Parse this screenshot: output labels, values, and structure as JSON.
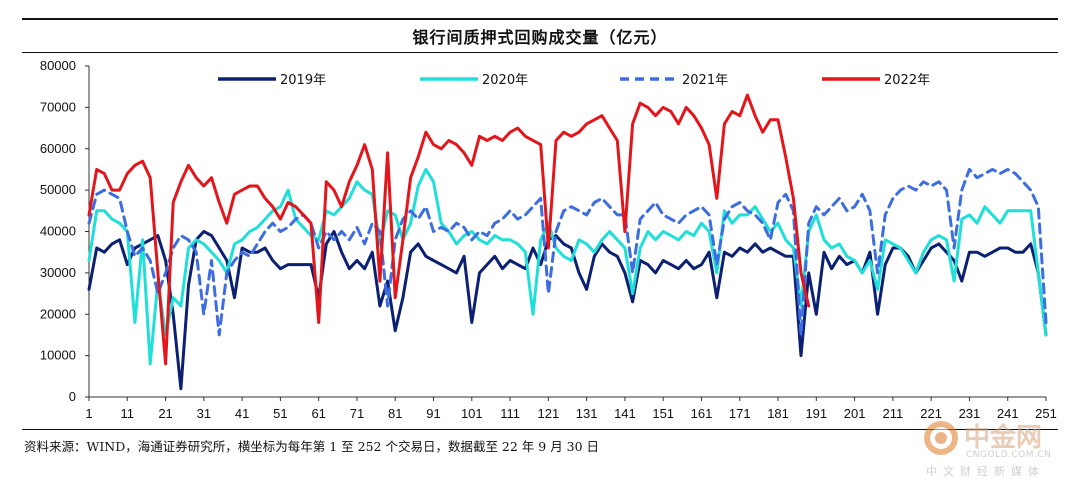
{
  "chart_data": {
    "type": "line",
    "title": "银行间质押式回购成交量（亿元）",
    "xlabel": "",
    "ylabel": "",
    "ylim": [
      0,
      80000
    ],
    "xlim": [
      1,
      251
    ],
    "yticks": [
      0,
      10000,
      20000,
      30000,
      40000,
      50000,
      60000,
      70000,
      80000
    ],
    "xticks": [
      1,
      11,
      21,
      31,
      41,
      51,
      61,
      71,
      81,
      91,
      101,
      111,
      121,
      131,
      141,
      151,
      161,
      171,
      181,
      191,
      201,
      211,
      221,
      231,
      241,
      251
    ],
    "legend_position": "top",
    "series": [
      {
        "name": "2019年",
        "color": "#0b1f73",
        "dash": "solid",
        "x": [
          1,
          3,
          5,
          7,
          9,
          11,
          13,
          15,
          17,
          19,
          21,
          23,
          25,
          27,
          29,
          31,
          33,
          35,
          37,
          39,
          41,
          43,
          45,
          47,
          49,
          51,
          53,
          55,
          57,
          59,
          61,
          63,
          65,
          67,
          69,
          71,
          73,
          75,
          77,
          79,
          81,
          83,
          85,
          87,
          89,
          91,
          93,
          95,
          97,
          99,
          101,
          103,
          105,
          107,
          109,
          111,
          113,
          115,
          117,
          119,
          121,
          123,
          125,
          127,
          129,
          131,
          133,
          135,
          137,
          139,
          141,
          143,
          145,
          147,
          149,
          151,
          153,
          155,
          157,
          159,
          161,
          163,
          165,
          167,
          169,
          171,
          173,
          175,
          177,
          179,
          181,
          183,
          185,
          187,
          189,
          191,
          193,
          195,
          197,
          199,
          201,
          203,
          205,
          207,
          209,
          211,
          213,
          215,
          217,
          219,
          221,
          223,
          225,
          227,
          229,
          231,
          233,
          235,
          237,
          239,
          241,
          243,
          245,
          247,
          249,
          251
        ],
        "values": [
          26000,
          36000,
          35000,
          37000,
          38000,
          32000,
          36000,
          37000,
          38000,
          39000,
          33000,
          20000,
          2000,
          27000,
          38000,
          40000,
          39000,
          36000,
          33000,
          24000,
          36000,
          35000,
          35000,
          36000,
          33000,
          31000,
          32000,
          32000,
          32000,
          32000,
          24000,
          37000,
          40000,
          35000,
          31000,
          33000,
          31000,
          35000,
          22000,
          28000,
          16000,
          24000,
          35000,
          37000,
          34000,
          33000,
          32000,
          31000,
          30000,
          34000,
          18000,
          30000,
          32000,
          34000,
          31000,
          33000,
          32000,
          31000,
          36000,
          32000,
          38000,
          39000,
          37000,
          36000,
          30000,
          26000,
          34000,
          37000,
          35000,
          34000,
          30000,
          23000,
          33000,
          32000,
          30000,
          33000,
          32000,
          31000,
          33000,
          31000,
          32000,
          35000,
          24000,
          35000,
          34000,
          36000,
          35000,
          37000,
          35000,
          36000,
          35000,
          34000,
          34000,
          10000,
          30000,
          20000,
          35000,
          31000,
          34000,
          32000,
          33000,
          30000,
          35000,
          20000,
          32000,
          36000,
          36000,
          34000,
          30000,
          33000,
          36000,
          37000,
          35000,
          33000,
          28000,
          35000,
          35000,
          34000,
          35000,
          36000,
          36000,
          35000,
          35000,
          37000,
          30000,
          15000
        ]
      },
      {
        "name": "2020年",
        "color": "#1fe0d8",
        "dash": "solid",
        "x": [
          1,
          3,
          5,
          7,
          9,
          11,
          13,
          15,
          17,
          19,
          21,
          23,
          25,
          27,
          29,
          31,
          33,
          35,
          37,
          39,
          41,
          43,
          45,
          47,
          49,
          51,
          53,
          55,
          57,
          59,
          61,
          63,
          65,
          67,
          69,
          71,
          73,
          75,
          77,
          79,
          81,
          83,
          85,
          87,
          89,
          91,
          93,
          95,
          97,
          99,
          101,
          103,
          105,
          107,
          109,
          111,
          113,
          115,
          117,
          119,
          121,
          123,
          125,
          127,
          129,
          131,
          133,
          135,
          137,
          139,
          141,
          143,
          145,
          147,
          149,
          151,
          153,
          155,
          157,
          159,
          161,
          163,
          165,
          167,
          169,
          171,
          173,
          175,
          177,
          179,
          181,
          183,
          185,
          187,
          189,
          191,
          193,
          195,
          197,
          199,
          201,
          203,
          205,
          207,
          209,
          211,
          213,
          215,
          217,
          219,
          221,
          223,
          225,
          227,
          229,
          231,
          233,
          235,
          237,
          239,
          241,
          243,
          245,
          247,
          249,
          251
        ],
        "values": [
          33000,
          45000,
          45000,
          43000,
          42000,
          40000,
          18000,
          38000,
          8000,
          28000,
          15000,
          24000,
          22000,
          36000,
          38000,
          37000,
          35000,
          33000,
          30000,
          37000,
          38000,
          40000,
          41000,
          43000,
          45000,
          46000,
          50000,
          43000,
          41000,
          39000,
          38000,
          45000,
          44000,
          46000,
          48000,
          52000,
          50000,
          49000,
          37000,
          45000,
          44000,
          38000,
          42000,
          51000,
          55000,
          52000,
          42000,
          40000,
          37000,
          39000,
          40000,
          38000,
          37000,
          39000,
          38000,
          38000,
          37000,
          35000,
          20000,
          38000,
          42000,
          36000,
          34000,
          33000,
          38000,
          37000,
          35000,
          38000,
          40000,
          38000,
          36000,
          25000,
          36000,
          40000,
          38000,
          40000,
          39000,
          38000,
          40000,
          39000,
          42000,
          40000,
          30000,
          45000,
          42000,
          44000,
          44000,
          46000,
          43000,
          40000,
          42000,
          38000,
          36000,
          22000,
          40000,
          44000,
          38000,
          36000,
          37000,
          34000,
          33000,
          30000,
          33000,
          26000,
          38000,
          37000,
          36000,
          33000,
          30000,
          35000,
          38000,
          39000,
          38000,
          28000,
          43000,
          44000,
          42000,
          46000,
          44000,
          42000,
          45000,
          45000,
          45000,
          45000,
          30000,
          15000
        ]
      },
      {
        "name": "2021年",
        "color": "#3d6de0",
        "dash": "dashed",
        "x": [
          1,
          3,
          5,
          7,
          9,
          11,
          13,
          15,
          17,
          19,
          21,
          23,
          25,
          27,
          29,
          31,
          33,
          35,
          37,
          39,
          41,
          43,
          45,
          47,
          49,
          51,
          53,
          55,
          57,
          59,
          61,
          63,
          65,
          67,
          69,
          71,
          73,
          75,
          77,
          79,
          81,
          83,
          85,
          87,
          89,
          91,
          93,
          95,
          97,
          99,
          101,
          103,
          105,
          107,
          109,
          111,
          113,
          115,
          117,
          119,
          121,
          123,
          125,
          127,
          129,
          131,
          133,
          135,
          137,
          139,
          141,
          143,
          145,
          147,
          149,
          151,
          153,
          155,
          157,
          159,
          161,
          163,
          165,
          167,
          169,
          171,
          173,
          175,
          177,
          179,
          181,
          183,
          185,
          187,
          189,
          191,
          193,
          195,
          197,
          199,
          201,
          203,
          205,
          207,
          209,
          211,
          213,
          215,
          217,
          219,
          221,
          223,
          225,
          227,
          229,
          231,
          233,
          235,
          237,
          239,
          241,
          243,
          245,
          247,
          249,
          251
        ],
        "values": [
          42000,
          49000,
          50000,
          49000,
          48000,
          40000,
          34000,
          36000,
          33000,
          25000,
          30000,
          36000,
          39000,
          38000,
          35000,
          20000,
          33000,
          15000,
          30000,
          33000,
          35000,
          34000,
          37000,
          40000,
          42000,
          40000,
          41000,
          43000,
          44000,
          42000,
          36000,
          40000,
          38000,
          40000,
          38000,
          41000,
          37000,
          42000,
          40000,
          22000,
          38000,
          43000,
          45000,
          43000,
          46000,
          40000,
          41000,
          40000,
          42000,
          41000,
          38000,
          40000,
          39000,
          42000,
          43000,
          45000,
          43000,
          44000,
          46000,
          48000,
          25000,
          40000,
          45000,
          46000,
          45000,
          44000,
          47000,
          48000,
          46000,
          44000,
          44000,
          30000,
          43000,
          45000,
          47000,
          44000,
          43000,
          42000,
          44000,
          45000,
          46000,
          44000,
          32000,
          43000,
          46000,
          47000,
          45000,
          44000,
          42000,
          38000,
          47000,
          49000,
          45000,
          15000,
          42000,
          46000,
          44000,
          46000,
          48000,
          45000,
          46000,
          49000,
          45000,
          30000,
          44000,
          48000,
          50000,
          51000,
          50000,
          52000,
          51000,
          52000,
          50000,
          36000,
          50000,
          55000,
          53000,
          54000,
          55000,
          54000,
          55000,
          54000,
          52000,
          50000,
          46000,
          18000
        ]
      },
      {
        "name": "2022年",
        "color": "#e3161b",
        "dash": "solid",
        "x": [
          1,
          3,
          5,
          7,
          9,
          11,
          13,
          15,
          17,
          19,
          21,
          23,
          25,
          27,
          29,
          31,
          33,
          35,
          37,
          39,
          41,
          43,
          45,
          47,
          49,
          51,
          53,
          55,
          57,
          59,
          61,
          63,
          65,
          67,
          69,
          71,
          73,
          75,
          77,
          79,
          81,
          83,
          85,
          87,
          89,
          91,
          93,
          95,
          97,
          99,
          101,
          103,
          105,
          107,
          109,
          111,
          113,
          115,
          117,
          119,
          121,
          123,
          125,
          127,
          129,
          131,
          133,
          135,
          137,
          139,
          141,
          143,
          145,
          147,
          149,
          151,
          153,
          155,
          157,
          159,
          161,
          163,
          165,
          167,
          169,
          171,
          173,
          175,
          177,
          179,
          181,
          183,
          185,
          187,
          189
        ],
        "values": [
          44000,
          55000,
          54000,
          50000,
          50000,
          54000,
          56000,
          57000,
          53000,
          30000,
          8000,
          47000,
          52000,
          56000,
          53000,
          51000,
          53000,
          47000,
          42000,
          49000,
          50000,
          51000,
          51000,
          48000,
          46000,
          43000,
          47000,
          46000,
          44000,
          42000,
          18000,
          52000,
          50000,
          46000,
          52000,
          56000,
          61000,
          55000,
          28000,
          59000,
          24000,
          38000,
          53000,
          58000,
          64000,
          61000,
          60000,
          62000,
          61000,
          59000,
          56000,
          63000,
          62000,
          63000,
          62000,
          64000,
          65000,
          63000,
          62000,
          61000,
          36000,
          62000,
          64000,
          63000,
          64000,
          66000,
          67000,
          68000,
          65000,
          62000,
          40000,
          66000,
          71000,
          70000,
          68000,
          70000,
          69000,
          66000,
          70000,
          68000,
          65000,
          61000,
          48000,
          66000,
          69000,
          68000,
          73000,
          68000,
          64000,
          67000,
          67000,
          58000,
          48000,
          30000,
          22000
        ]
      }
    ]
  },
  "source_note": "资料来源：WIND，海通证券研究所，横坐标为每年第 1 至 252 个交易日，数据截至 22 年 9 月 30 日",
  "watermark": {
    "name": "中金网",
    "site": "CNGOLD.COM.CN",
    "tagline": "中文财经新媒体"
  }
}
